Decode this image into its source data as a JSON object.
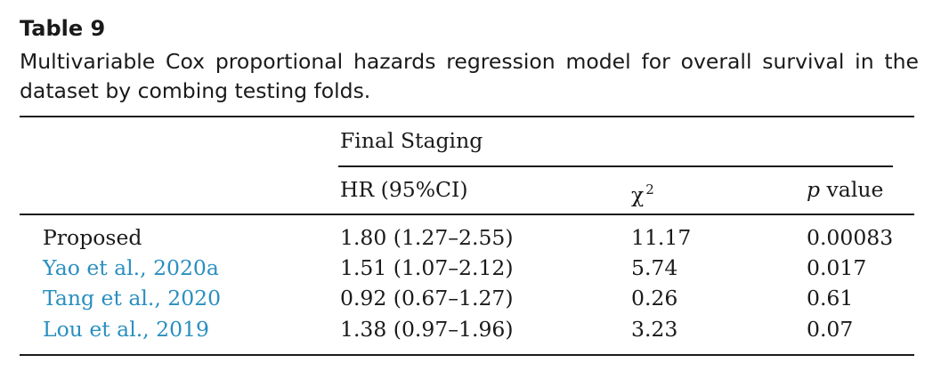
{
  "table": {
    "label": "Table 9",
    "caption": "Multivariable Cox proportional hazards regression model for overall survival in the dataset by combing testing folds.",
    "group_header": "Final Staging",
    "columns": {
      "hr": "HR (95%CI)",
      "chi_symbol": "χ",
      "chi_exponent": "2",
      "p_symbol": "p",
      "p_word": "value"
    },
    "rows": [
      {
        "method": "Proposed",
        "hr": "1.80 (1.27–2.55)",
        "chi2": "11.17",
        "p": "0.00083",
        "is_link": false
      },
      {
        "method": "Yao et al., 2020a",
        "hr": "1.51 (1.07–2.12)",
        "chi2": "5.74",
        "p": "0.017",
        "is_link": true
      },
      {
        "method": "Tang et al., 2020",
        "hr": "0.92 (0.67–1.27)",
        "chi2": "0.26",
        "p": "0.61",
        "is_link": true
      },
      {
        "method": "Lou et al., 2019",
        "hr": "1.38 (0.97–1.96)",
        "chi2": "3.23",
        "p": "0.07",
        "is_link": true
      }
    ],
    "colors": {
      "text": "#1a1a1a",
      "link": "#2a8fc0"
    }
  }
}
